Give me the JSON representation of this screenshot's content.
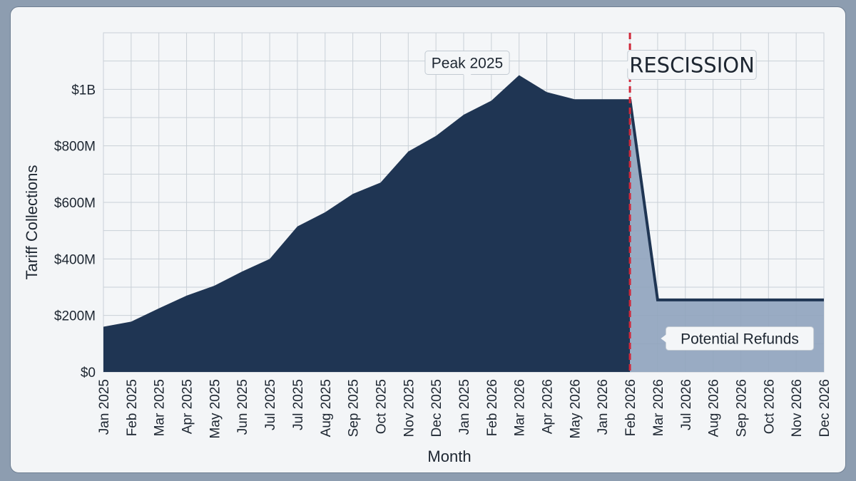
{
  "chart_data": {
    "type": "area",
    "title": "",
    "xlabel": "Month",
    "ylabel": "Tariff Collections",
    "categories": [
      "Jan 2025",
      "Feb 2025",
      "Mar 2025",
      "Apr 2025",
      "May 2025",
      "Jun 2025",
      "Jul 2025",
      "Jul 2025",
      "Aug 2025",
      "Sep 2025",
      "Oct 2025",
      "Nov 2025",
      "Dec 2025",
      "Jan 2025",
      "Feb 2026",
      "Mar 2026",
      "Apr 2026",
      "May 2026",
      "Jan 2026",
      "Feb 2026",
      "Mar 2026",
      "Jul 2026",
      "Aug 2026",
      "Sep 2026",
      "Oct 2026",
      "Nov 2026",
      "Dec 2026"
    ],
    "series": [
      {
        "values": [
          160,
          178,
          225,
          270,
          305,
          355,
          400,
          515,
          565,
          630,
          670,
          780,
          835,
          910,
          960,
          1050,
          990,
          965,
          965,
          965,
          255,
          255,
          255,
          255,
          255,
          255,
          255
        ],
        "unit": "$M",
        "color": "#1f3553"
      }
    ],
    "refund_region": {
      "from_index": 19,
      "to_index": 26,
      "color": "#8fa3bc"
    },
    "yticks": [
      {
        "value": 0,
        "label": "$0"
      },
      {
        "value": 200,
        "label": "$200M"
      },
      {
        "value": 400,
        "label": "$400M"
      },
      {
        "value": 600,
        "label": "$600M"
      },
      {
        "value": 800,
        "label": "$800M"
      },
      {
        "value": 1000,
        "label": "$1B"
      }
    ],
    "ylim": [
      0,
      1200
    ],
    "grid": true,
    "annotations": {
      "peak": "Peak 2025",
      "rescission": "RESCISSION",
      "refunds": "Potential Refunds"
    },
    "rescission_index": 19,
    "rescission_color": "#d0283a"
  }
}
